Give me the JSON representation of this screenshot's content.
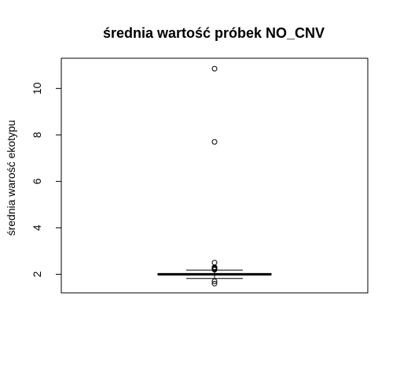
{
  "chart_data": {
    "type": "box",
    "title": "średnia wartość próbek NO_CNV",
    "xlabel": "",
    "ylabel": "średnia warość ekotypu",
    "ylim": [
      1.2,
      11.3
    ],
    "yticks": [
      2,
      4,
      6,
      8,
      10
    ],
    "grid": false,
    "box": {
      "whisker_low": 1.82,
      "q1": 1.97,
      "median": 2.0,
      "q3": 2.03,
      "whisker_high": 2.18
    },
    "outliers": [
      10.85,
      7.7,
      2.5,
      2.3,
      2.27,
      2.24,
      2.22,
      2.2,
      1.7,
      1.6
    ]
  }
}
